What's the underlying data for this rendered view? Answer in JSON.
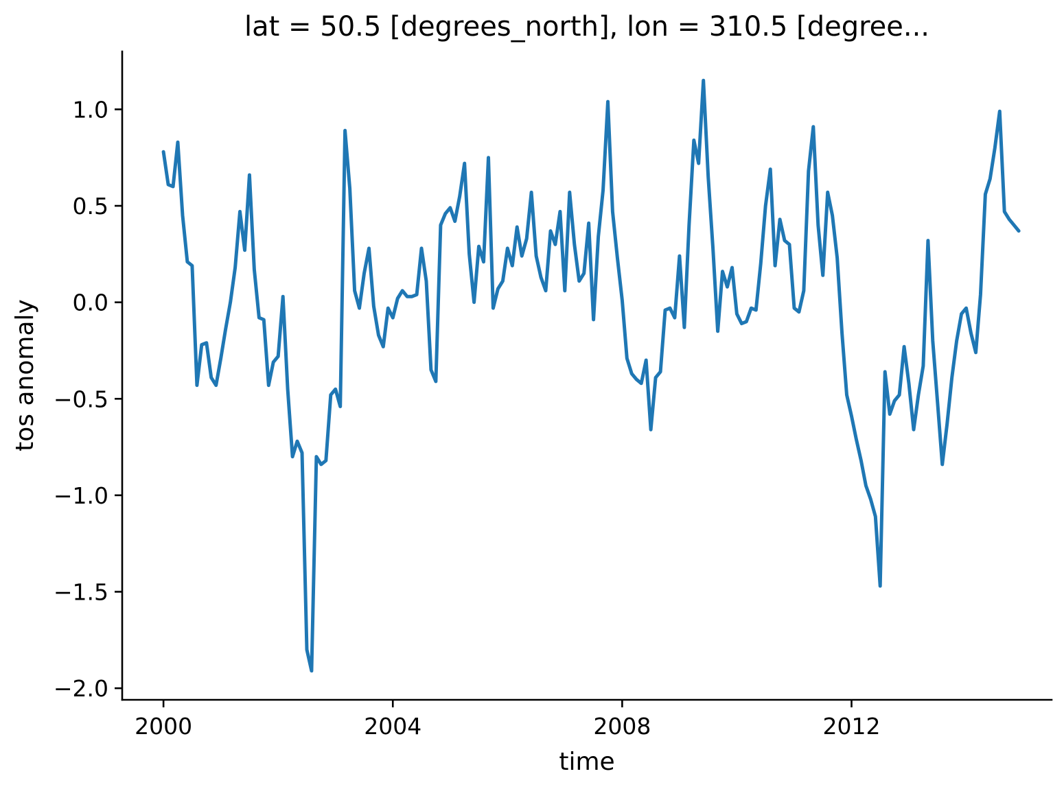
{
  "chart_data": {
    "type": "line",
    "title": "lat = 50.5 [degrees_north], lon = 310.5 [degree...",
    "xlabel": "time",
    "ylabel": "tos anomaly",
    "line_color": "#1f77b4",
    "background_color": "#ffffff",
    "grid": false,
    "legend": null,
    "x_start_year": 2000,
    "x_interval": "monthly",
    "xlim_years": [
      1999.28,
      2015.49
    ],
    "ylim": [
      -2.06,
      1.3
    ],
    "xtick_years": [
      2000,
      2004,
      2008,
      2012
    ],
    "xtick_labels": [
      "2000",
      "2004",
      "2008",
      "2012"
    ],
    "ytick_values": [
      1.0,
      0.5,
      0.0,
      -0.5,
      -1.0,
      -1.5,
      -2.0
    ],
    "ytick_labels": [
      "1.0",
      "0.5",
      "0.0",
      "−0.5",
      "−1.0",
      "−1.5",
      "−2.0"
    ],
    "values": [
      0.78,
      0.61,
      0.6,
      0.83,
      0.45,
      0.21,
      0.19,
      -0.43,
      -0.22,
      -0.21,
      -0.39,
      -0.43,
      -0.29,
      -0.14,
      0.0,
      0.18,
      0.47,
      0.27,
      0.66,
      0.17,
      -0.08,
      -0.09,
      -0.43,
      -0.31,
      -0.28,
      0.03,
      -0.45,
      -0.8,
      -0.72,
      -0.78,
      -1.8,
      -1.91,
      -0.8,
      -0.84,
      -0.82,
      -0.48,
      -0.45,
      -0.54,
      0.89,
      0.59,
      0.06,
      -0.03,
      0.15,
      0.28,
      -0.02,
      -0.17,
      -0.23,
      -0.03,
      -0.08,
      0.02,
      0.06,
      0.03,
      0.03,
      0.04,
      0.28,
      0.11,
      -0.35,
      -0.41,
      0.4,
      0.46,
      0.49,
      0.42,
      0.55,
      0.72,
      0.25,
      0.0,
      0.29,
      0.21,
      0.75,
      -0.03,
      0.07,
      0.11,
      0.28,
      0.19,
      0.39,
      0.24,
      0.33,
      0.57,
      0.24,
      0.13,
      0.06,
      0.37,
      0.3,
      0.47,
      0.06,
      0.57,
      0.3,
      0.11,
      0.15,
      0.41,
      -0.09,
      0.34,
      0.58,
      1.04,
      0.47,
      0.23,
      0.01,
      -0.29,
      -0.37,
      -0.4,
      -0.42,
      -0.3,
      -0.66,
      -0.39,
      -0.36,
      -0.04,
      -0.03,
      -0.08,
      0.24,
      -0.13,
      0.4,
      0.84,
      0.72,
      1.15,
      0.65,
      0.28,
      -0.15,
      0.16,
      0.08,
      0.18,
      -0.06,
      -0.11,
      -0.1,
      -0.03,
      -0.04,
      0.2,
      0.5,
      0.69,
      0.19,
      0.43,
      0.32,
      0.3,
      -0.03,
      -0.05,
      0.06,
      0.68,
      0.91,
      0.4,
      0.14,
      0.57,
      0.45,
      0.23,
      -0.16,
      -0.48,
      -0.59,
      -0.71,
      -0.82,
      -0.95,
      -1.02,
      -1.11,
      -1.47,
      -0.36,
      -0.58,
      -0.51,
      -0.48,
      -0.23,
      -0.42,
      -0.66,
      -0.48,
      -0.33,
      0.32,
      -0.2,
      -0.52,
      -0.84,
      -0.63,
      -0.39,
      -0.2,
      -0.06,
      -0.03,
      -0.16,
      -0.26,
      0.04,
      0.56,
      0.64,
      0.8,
      0.99,
      0.47,
      0.43,
      0.4,
      0.37
    ]
  }
}
